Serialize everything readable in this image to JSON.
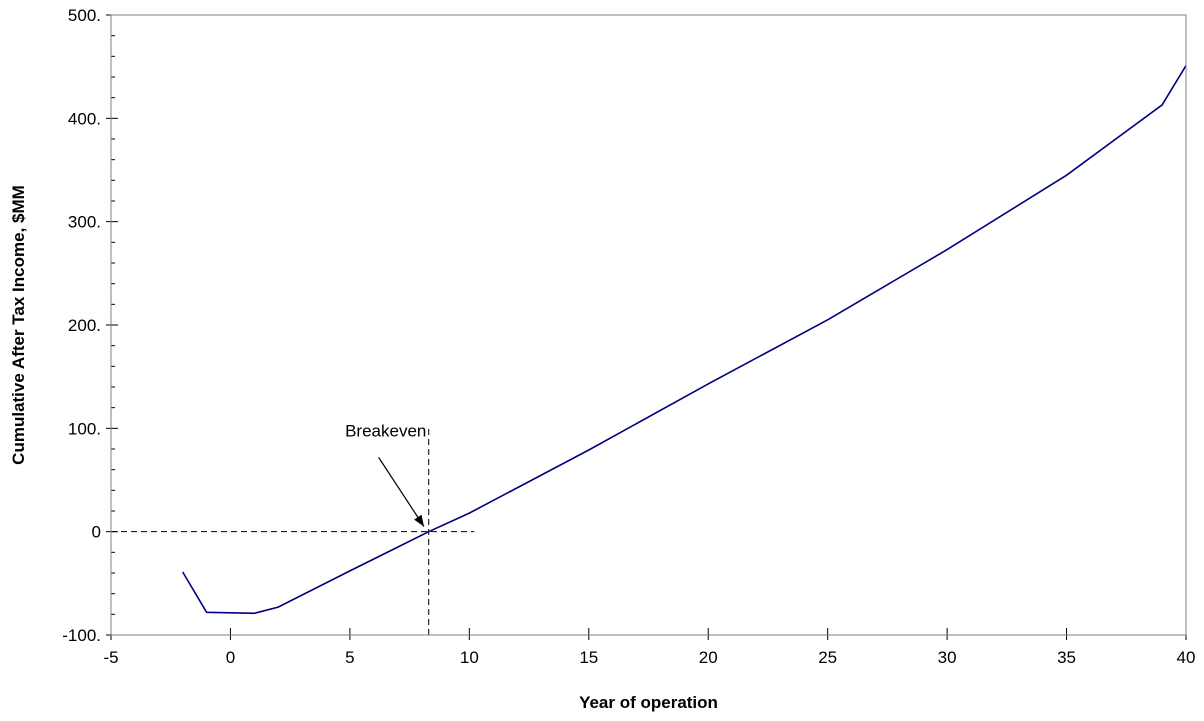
{
  "chart_data": {
    "type": "line",
    "title": "",
    "xlabel": "Year of operation",
    "ylabel": "Cumulative After Tax Income, $MM",
    "xlim": [
      -5,
      40
    ],
    "ylim": [
      -100,
      500
    ],
    "x_ticks": [
      -5,
      0,
      5,
      10,
      15,
      20,
      25,
      30,
      35,
      40
    ],
    "x_tick_labels": [
      "-5",
      "0",
      "5",
      "10",
      "15",
      "20",
      "25",
      "30",
      "35",
      "40"
    ],
    "y_ticks": [
      -100,
      0,
      100,
      200,
      300,
      400,
      500
    ],
    "y_tick_labels": [
      "-100.",
      "0",
      "100.",
      "200.",
      "300.",
      "400.",
      "500."
    ],
    "y_minor_step": 20,
    "grid": false,
    "series": [
      {
        "color": "#000080",
        "x": [
          -2,
          -1,
          1,
          2,
          5,
          8.3,
          10,
          15,
          20,
          25,
          30,
          35,
          39,
          40
        ],
        "y": [
          -39,
          -78,
          -79,
          -73,
          -38,
          0,
          18,
          79,
          143,
          205,
          273,
          345,
          413,
          451
        ]
      }
    ],
    "reference_lines": {
      "horizontal": {
        "y": 0,
        "x_from": -5,
        "x_to": 10.2
      },
      "vertical": {
        "x": 8.3,
        "y_from": -100,
        "y_to": 103
      }
    },
    "annotation": {
      "text": "Breakeven",
      "label_x": 6.5,
      "label_y": 92,
      "arrow_from": [
        6.2,
        72
      ],
      "arrow_to": [
        8.1,
        5
      ]
    }
  }
}
